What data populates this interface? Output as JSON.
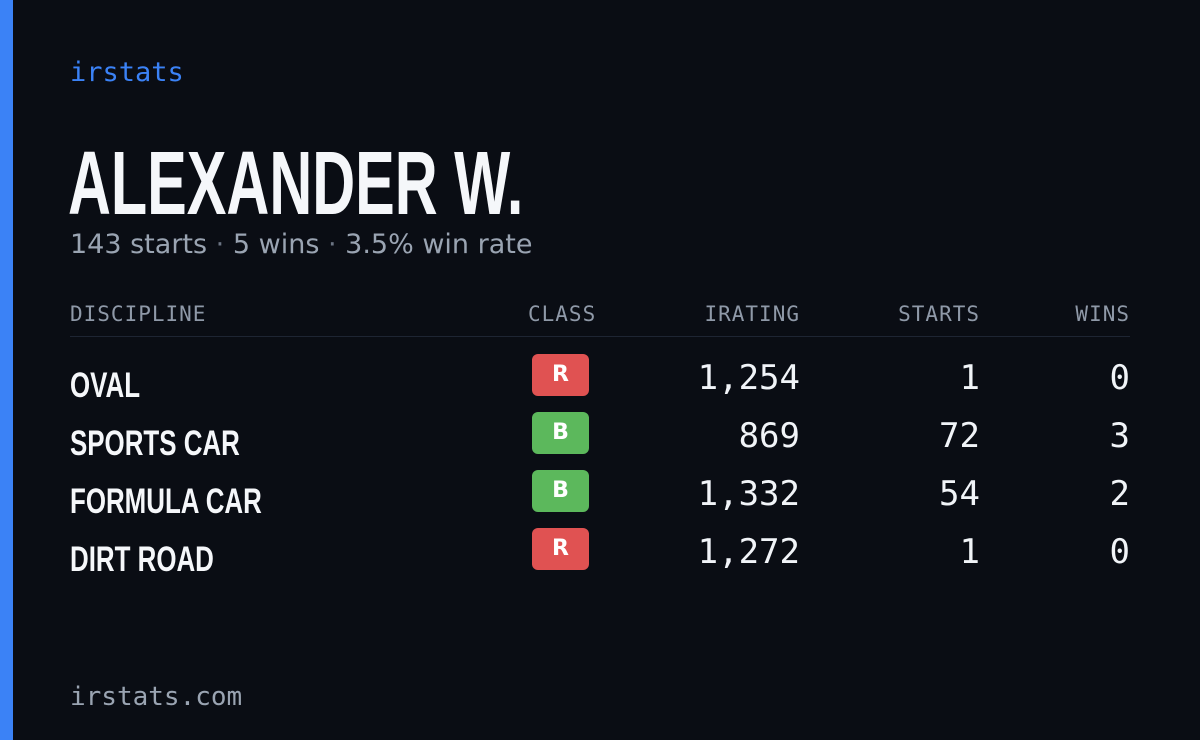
{
  "brand": "irstats",
  "driver": {
    "name": "ALEXANDER W.",
    "starts_text": "143 starts",
    "wins_text": "5 wins",
    "win_rate_text": "3.5% win rate",
    "separator": "·"
  },
  "table": {
    "headers": {
      "discipline": "DISCIPLINE",
      "class": "CLASS",
      "irating": "IRATING",
      "starts": "STARTS",
      "wins": "WINS"
    },
    "rows": [
      {
        "discipline": "OVAL",
        "class": "R",
        "class_color": "#e05252",
        "irating": "1,254",
        "starts": "1",
        "wins": "0"
      },
      {
        "discipline": "SPORTS CAR",
        "class": "B",
        "class_color": "#5cb85c",
        "irating": "869",
        "starts": "72",
        "wins": "3"
      },
      {
        "discipline": "FORMULA CAR",
        "class": "B",
        "class_color": "#5cb85c",
        "irating": "1,332",
        "starts": "54",
        "wins": "2"
      },
      {
        "discipline": "DIRT ROAD",
        "class": "R",
        "class_color": "#e05252",
        "irating": "1,272",
        "starts": "1",
        "wins": "0"
      }
    ]
  },
  "footer": "irstats.com",
  "colors": {
    "accent": "#3b82f6",
    "background": "#0a0d14",
    "class_r": "#e05252",
    "class_b": "#5cb85c"
  }
}
